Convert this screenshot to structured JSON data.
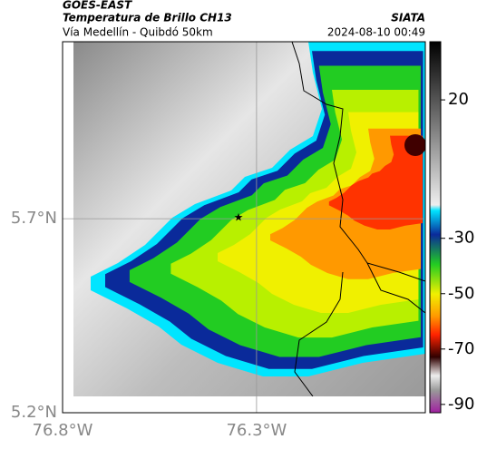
{
  "header": {
    "source": "GOES-EAST",
    "title": "Temperatura de Brillo CH13",
    "org": "SIATA",
    "subtitle": "Vía Medellín - Quibdó 50km",
    "timestamp": "2024-08-10 00:49"
  },
  "map": {
    "lon_lim": [
      -76.8,
      -75.865
    ],
    "lat_lim": [
      5.2,
      6.156
    ],
    "lon_ticks": [
      {
        "value": -76.8,
        "label": "76.8°W"
      },
      {
        "value": -76.3,
        "label": "76.3°W"
      }
    ],
    "lat_ticks": [
      {
        "value": 5.7,
        "label": "5.7°N"
      },
      {
        "value": 5.2,
        "label": "5.2°N"
      }
    ]
  },
  "colorbar": {
    "lim": [
      -93,
      41
    ],
    "ticks": [
      20,
      -30,
      -50,
      -70,
      -90
    ]
  }
}
